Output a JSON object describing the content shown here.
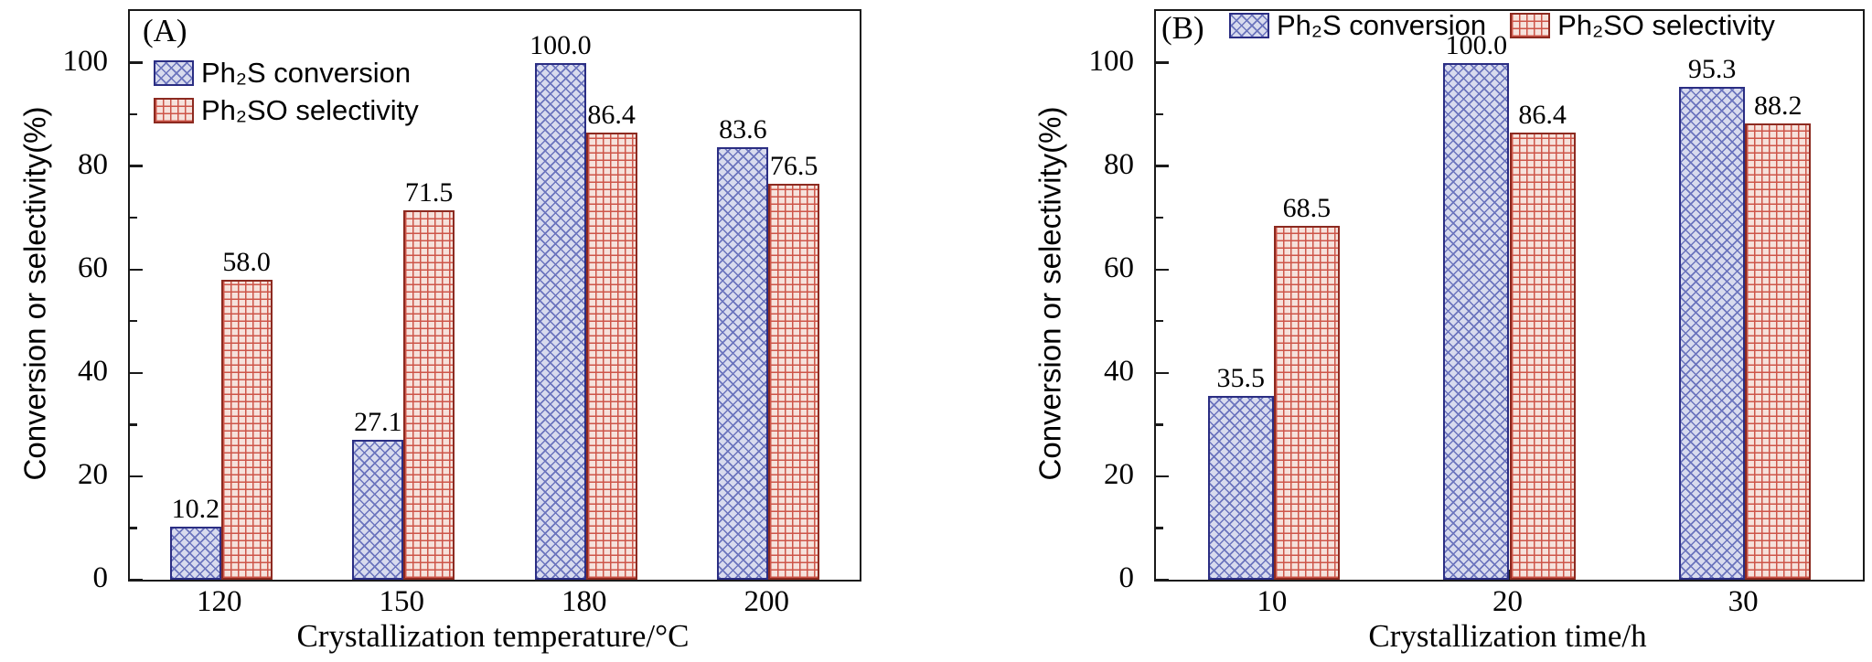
{
  "chart_data": [
    {
      "type": "bar",
      "panel_label": "(A)",
      "categories": [
        "120",
        "150",
        "180",
        "200"
      ],
      "series": [
        {
          "name": "Ph₂S conversion",
          "values": [
            10.2,
            27.1,
            100.0,
            83.6
          ],
          "pattern": "diagonal-cross",
          "fill": "#d8dbee",
          "hatch": "#6b74bd",
          "border": "#2b2e83"
        },
        {
          "name": "Ph₂SO selectivity",
          "values": [
            58.0,
            71.5,
            86.4,
            76.5
          ],
          "pattern": "grid",
          "fill": "#f6e2dc",
          "hatch": "#cd5549",
          "border": "#8c2a20"
        }
      ],
      "xlabel": "Crystallization temperature/°C",
      "ylabel": "Conversion or selectivity(%)",
      "ylim": [
        0,
        110
      ],
      "yticks": [
        0,
        20,
        40,
        60,
        80,
        100
      ],
      "grid": false,
      "value_labels": true,
      "legend_position": "upper-left-inside"
    },
    {
      "type": "bar",
      "panel_label": "(B)",
      "categories": [
        "10",
        "20",
        "30"
      ],
      "series": [
        {
          "name": "Ph₂S conversion",
          "values": [
            35.5,
            100.0,
            95.3
          ],
          "pattern": "diagonal-cross",
          "fill": "#d8dbee",
          "hatch": "#6b74bd",
          "border": "#2b2e83"
        },
        {
          "name": "Ph₂SO selectivity",
          "values": [
            68.5,
            86.4,
            88.2
          ],
          "pattern": "grid",
          "fill": "#f6e2dc",
          "hatch": "#cd5549",
          "border": "#8c2a20"
        }
      ],
      "xlabel": "Crystallization time/h",
      "ylabel": "Conversion or selectivity(%)",
      "ylim": [
        0,
        110
      ],
      "yticks": [
        0,
        20,
        40,
        60,
        80,
        100
      ],
      "grid": false,
      "value_labels": true,
      "legend_position": "top-inline"
    }
  ]
}
